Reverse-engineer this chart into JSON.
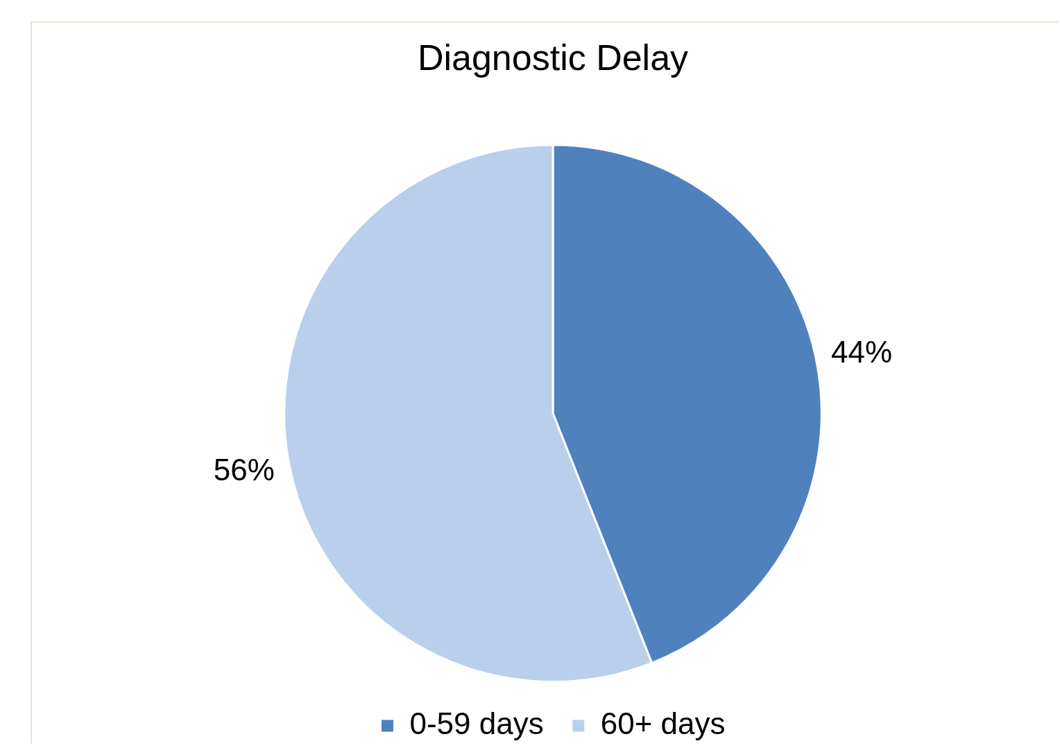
{
  "chart_data": {
    "type": "pie",
    "title": "Diagnostic Delay",
    "categories": [
      "0-59 days",
      "60+ days"
    ],
    "values": [
      44,
      56
    ],
    "colors": [
      "#4f81bd",
      "#b9cfec"
    ],
    "value_labels": [
      "44%",
      "56%"
    ],
    "legend": "bottom"
  }
}
